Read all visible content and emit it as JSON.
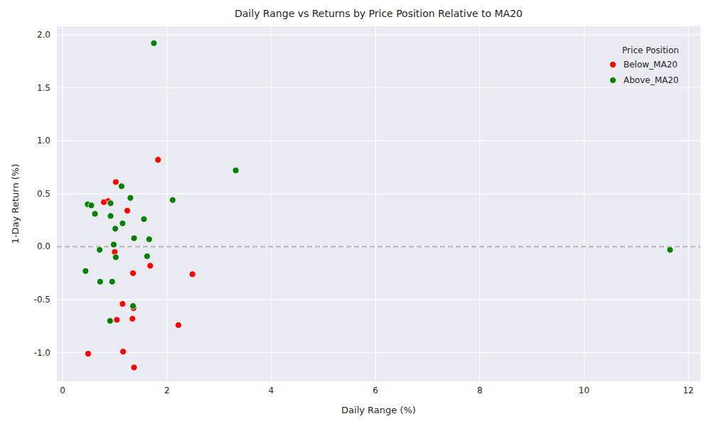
{
  "chart_data": {
    "type": "scatter",
    "title": "Daily Range vs Returns by Price Position Relative to MA20",
    "x_label": "Daily Range (%)",
    "y_label": "1-Day Return (%)",
    "legend_title": "Price Position",
    "legend": "upper right",
    "grid": true,
    "xlim": [
      -0.11,
      12.23
    ],
    "ylim": [
      -1.27,
      2.08
    ],
    "xticks": [
      0,
      2,
      4,
      6,
      8,
      10,
      12
    ],
    "yticks": [
      {
        "value": -1,
        "label": "-1.0"
      },
      {
        "value": -0.5,
        "label": "-0.5"
      },
      {
        "value": 0,
        "label": "0.0"
      },
      {
        "value": 0.5,
        "label": "0.5"
      },
      {
        "value": 1,
        "label": "1.0"
      },
      {
        "value": 1.5,
        "label": "1.5"
      },
      {
        "value": 2,
        "label": "2.0"
      }
    ],
    "reference_lines": [
      0
    ],
    "series": [
      {
        "name": "Below_MA20",
        "color": "#ff0000",
        "marker": "circle",
        "x": [
          1.83,
          1.02,
          0.87,
          0.79,
          1.24,
          1.0,
          1.68,
          1.35,
          2.49,
          1.15,
          1.36,
          1.34,
          1.04,
          2.22,
          0.49,
          1.16,
          1.37
        ],
        "values": [
          0.82,
          0.61,
          0.43,
          0.42,
          0.34,
          -0.05,
          -0.18,
          -0.25,
          -0.26,
          -0.54,
          -0.58,
          -0.68,
          -0.69,
          -0.74,
          -1.01,
          -0.99,
          -1.14
        ]
      },
      {
        "name": "Above_MA20",
        "color": "#008000",
        "marker": "circle",
        "x": [
          1.75,
          3.32,
          2.11,
          11.65,
          1.13,
          1.3,
          0.92,
          0.48,
          0.55,
          0.62,
          0.92,
          1.56,
          1.15,
          1.01,
          1.37,
          1.66,
          0.98,
          0.71,
          1.02,
          1.62,
          0.44,
          0.72,
          0.95,
          1.35,
          0.91
        ],
        "values": [
          1.92,
          0.72,
          0.44,
          -0.03,
          0.57,
          0.46,
          0.41,
          0.4,
          0.39,
          0.31,
          0.29,
          0.26,
          0.22,
          0.17,
          0.08,
          0.07,
          0.02,
          -0.03,
          -0.1,
          -0.09,
          -0.23,
          -0.33,
          -0.33,
          -0.56,
          -0.7
        ]
      }
    ]
  }
}
